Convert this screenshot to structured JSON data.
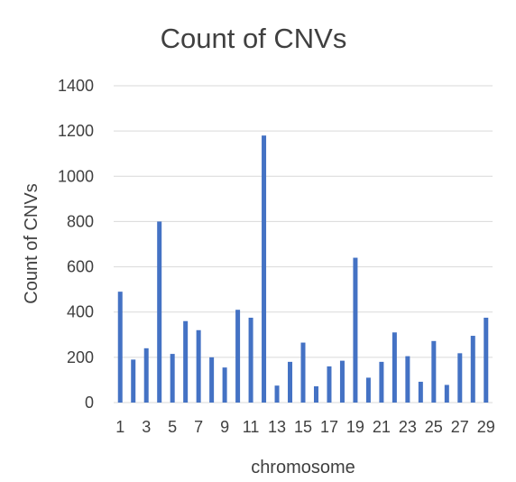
{
  "chart_data": {
    "type": "bar",
    "title": "Count of CNVs",
    "xlabel": "chromosome",
    "ylabel": "Count of CNVs",
    "ylim": [
      0,
      1400
    ],
    "yticks": [
      0,
      200,
      400,
      600,
      800,
      1000,
      1200,
      1400
    ],
    "grid": true,
    "legend": "none",
    "bar_color": "#4472c4",
    "categories": [
      "1",
      "2",
      "3",
      "4",
      "5",
      "6",
      "7",
      "8",
      "9",
      "10",
      "11",
      "12",
      "13",
      "14",
      "15",
      "16",
      "17",
      "18",
      "19",
      "20",
      "21",
      "22",
      "23",
      "24",
      "25",
      "26",
      "27",
      "28",
      "29"
    ],
    "xtick_labels": [
      "1",
      "3",
      "5",
      "7",
      "9",
      "11",
      "13",
      "15",
      "17",
      "19",
      "21",
      "23",
      "25",
      "27",
      "29"
    ],
    "values": [
      490,
      190,
      240,
      800,
      215,
      360,
      320,
      200,
      155,
      410,
      375,
      1180,
      75,
      180,
      265,
      72,
      160,
      185,
      640,
      110,
      180,
      310,
      205,
      92,
      272,
      78,
      218,
      295,
      375
    ]
  }
}
